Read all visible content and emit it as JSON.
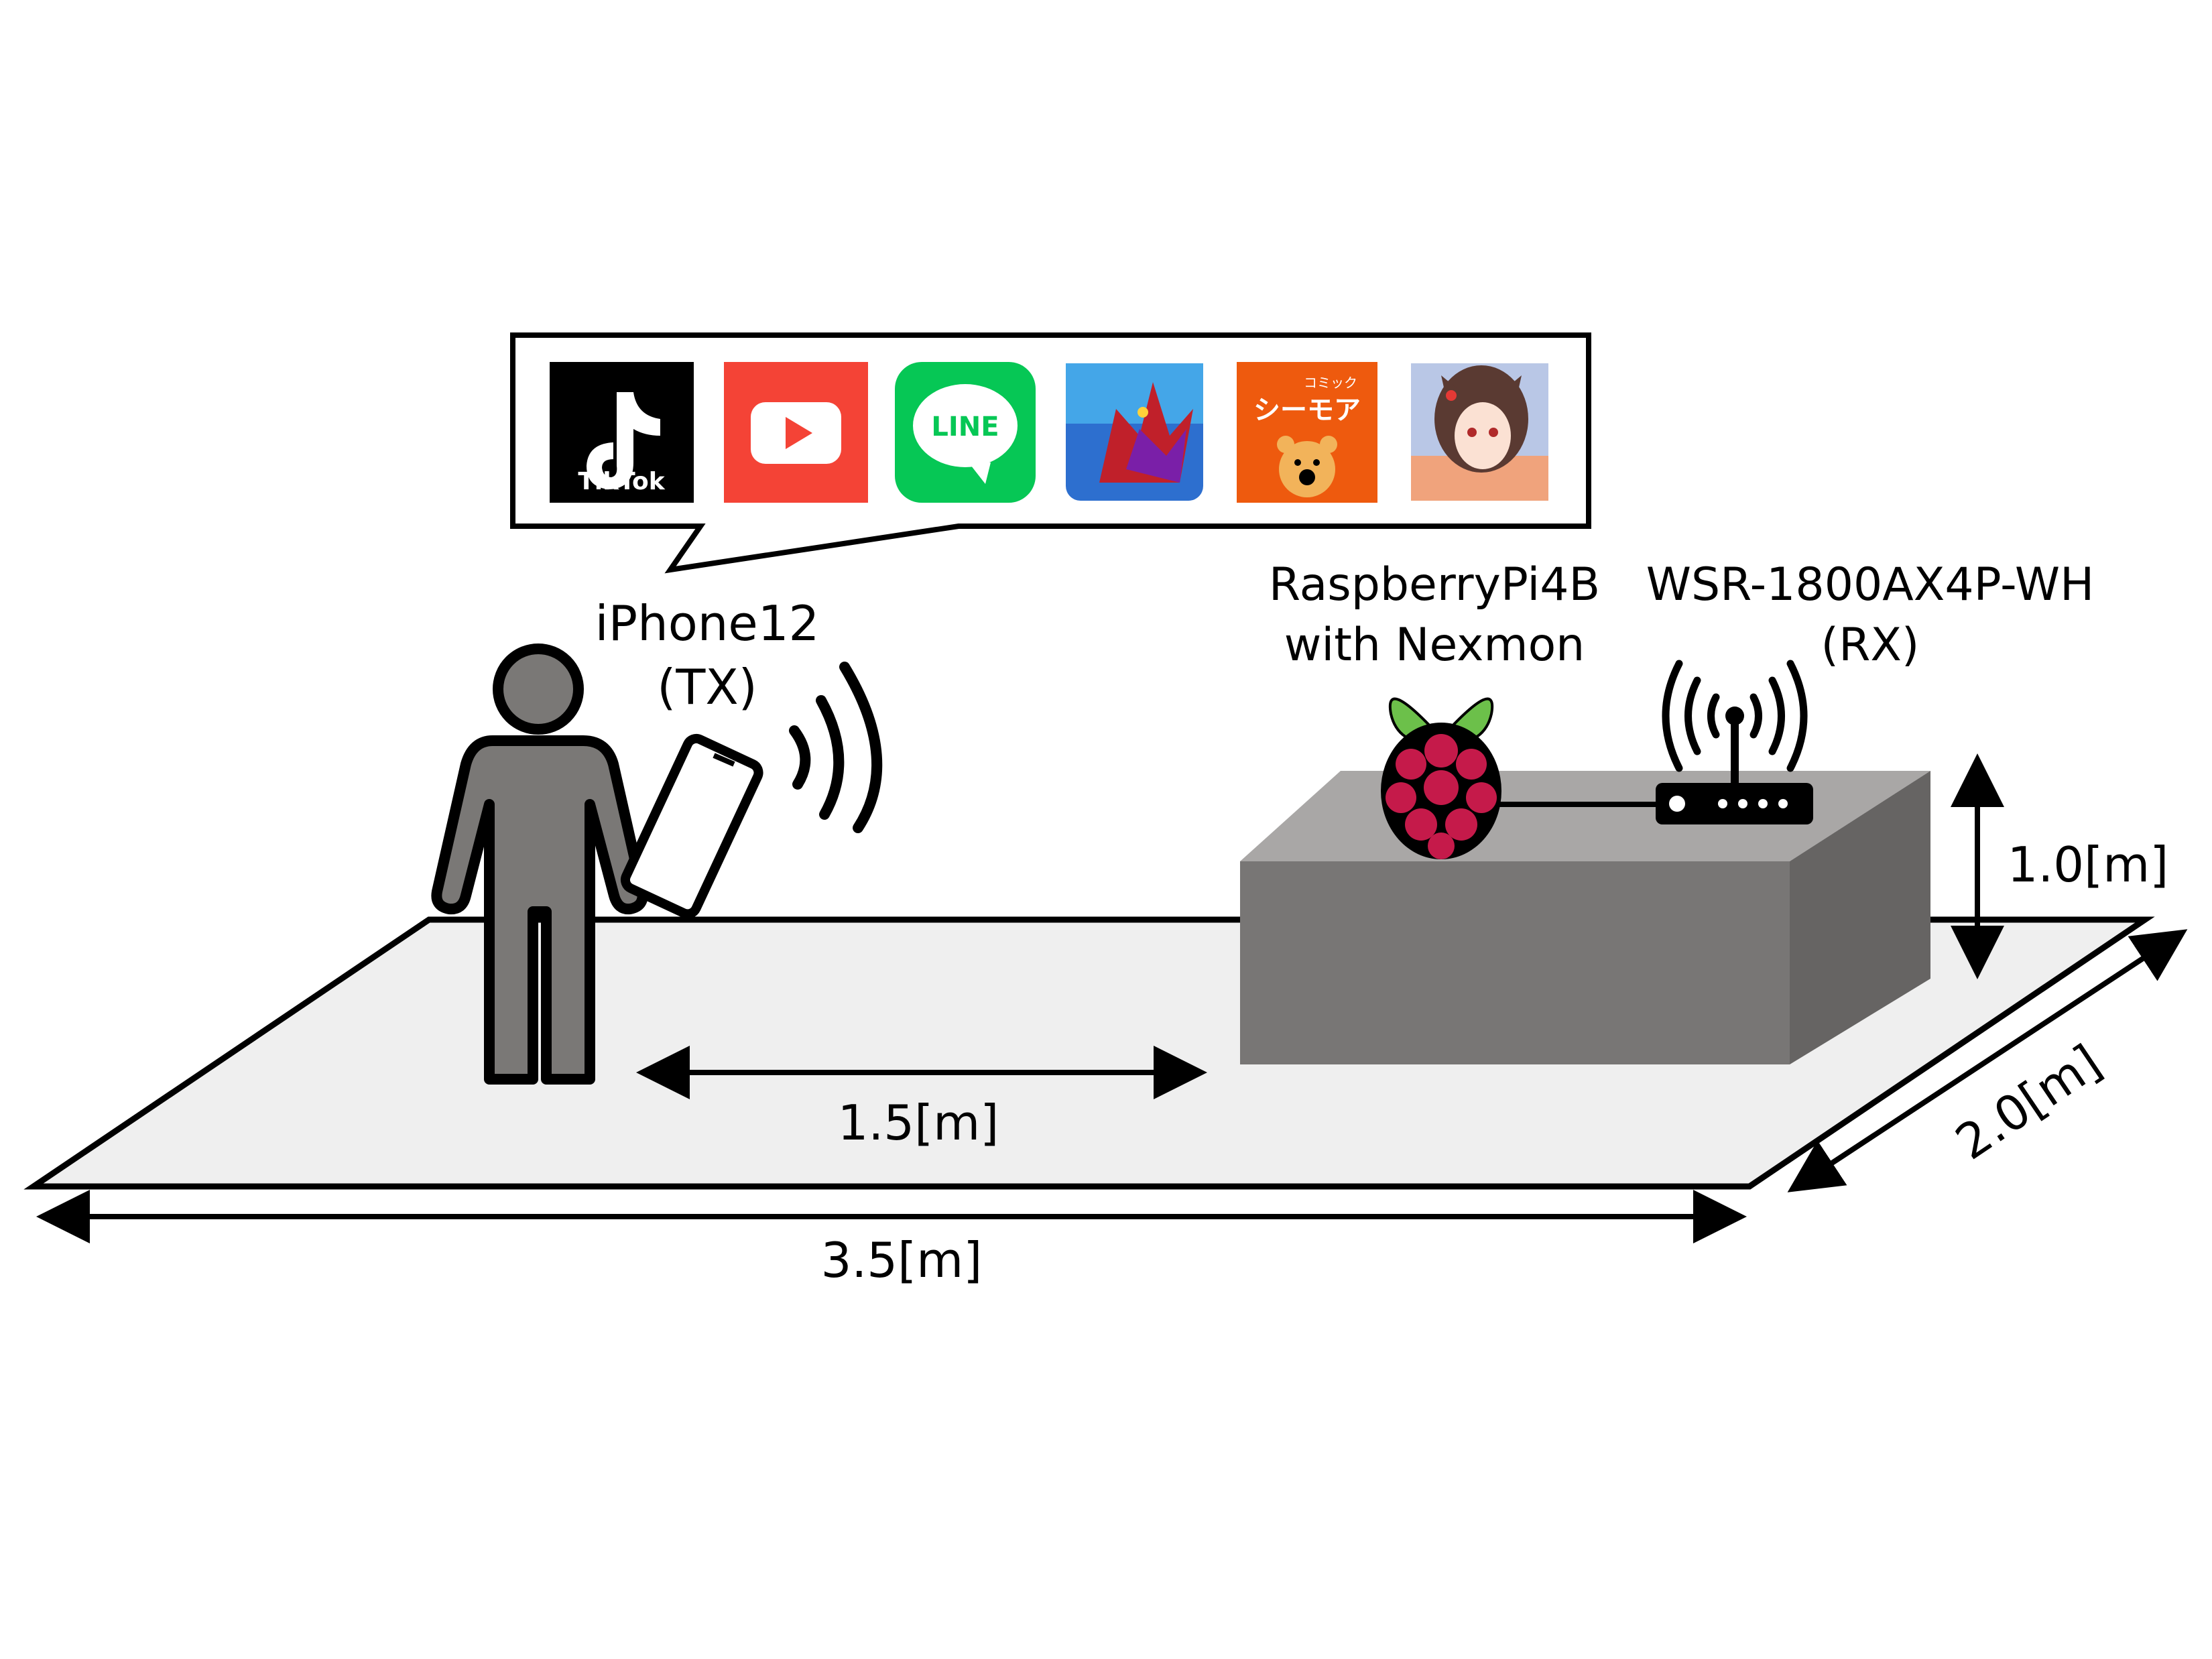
{
  "apps": {
    "tiktok": {
      "label": "TikTok"
    },
    "youtube": {
      "label": ""
    },
    "line": {
      "label": "LINE"
    },
    "puzzle_dragons": {
      "label": ""
    },
    "cmoa": {
      "label_top": "コミック",
      "label_main": "シーモア"
    },
    "anime_game": {
      "label": ""
    }
  },
  "labels": {
    "tx_device": "iPhone12",
    "tx_role": "(TX)",
    "sniffer_line1": "RaspberryPi4B",
    "sniffer_line2": "with Nexmon",
    "rx_device": "WSR-1800AX4P-WH",
    "rx_role": "(RX)"
  },
  "dimensions": {
    "distance": "1.5[m]",
    "room_width": "3.5[m]",
    "room_depth": "2.0[m]",
    "box_height": "1.0[m]"
  },
  "colors": {
    "floor": "#efefef",
    "person": "#7a7876",
    "box_top": "#a9a7a6",
    "box_front": "#787675",
    "box_side": "#666463",
    "raspberry": "#c51a4a",
    "raspberry_leaf": "#6cc04a",
    "youtube_red": "#f44336",
    "line_green": "#06c755",
    "cmoa_orange": "#f26522"
  }
}
